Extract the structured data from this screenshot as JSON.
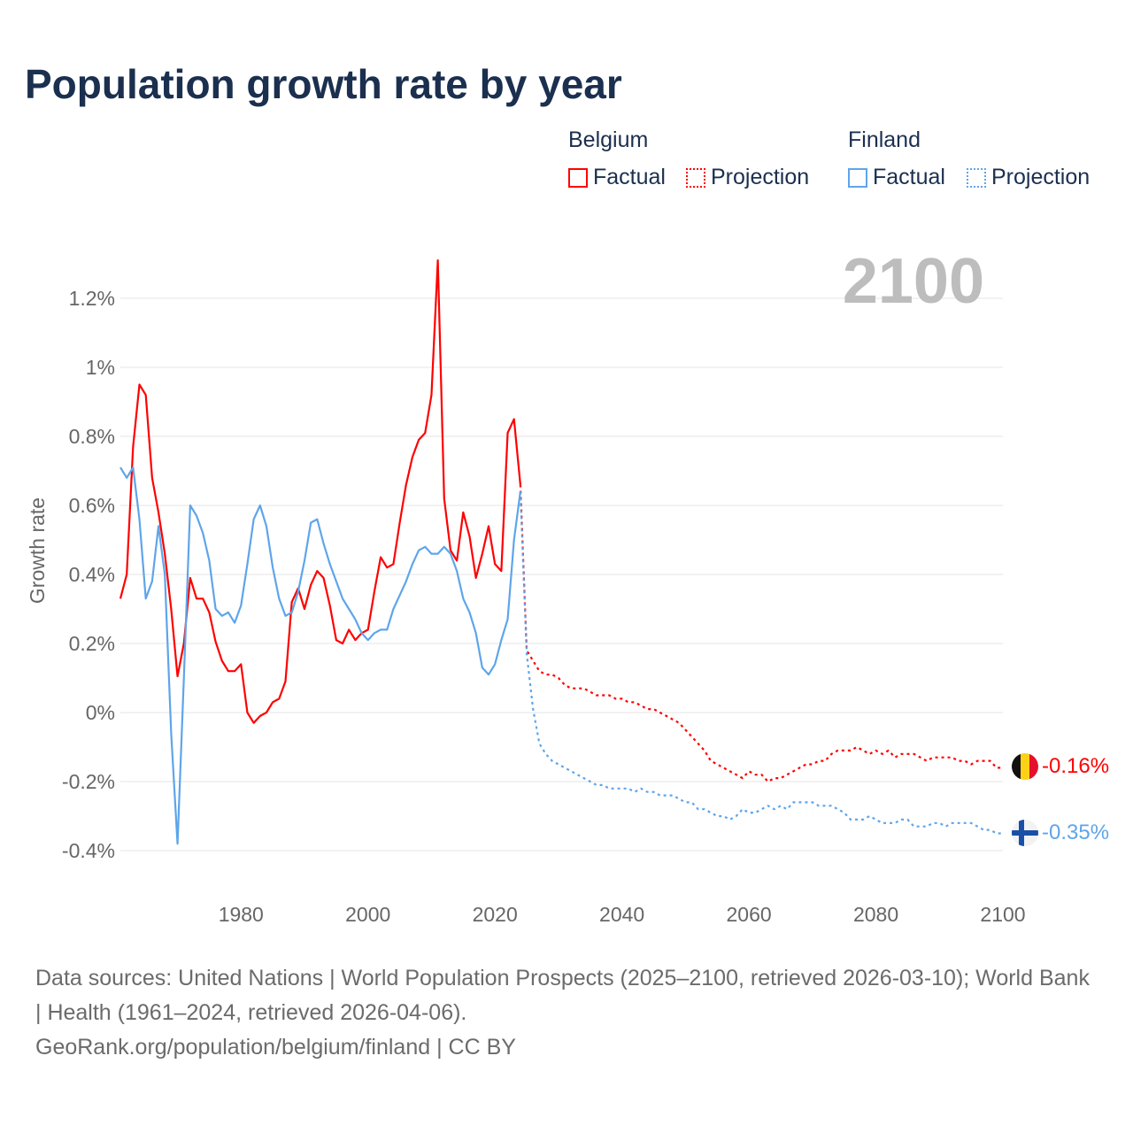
{
  "title": "Population growth rate by year",
  "legend": {
    "groups": [
      {
        "name": "Belgium",
        "factual": "Factual",
        "projection": "Projection",
        "color": "#ff0000"
      },
      {
        "name": "Finland",
        "factual": "Factual",
        "projection": "Projection",
        "color": "#5ea5ea"
      }
    ]
  },
  "year_badge": "2100",
  "end_labels": {
    "belgium": "-0.16%",
    "finland": "-0.35%"
  },
  "footer": {
    "line1": "Data sources: United Nations | World Population Prospects (2025–2100, retrieved 2026-03-10); World Bank | Health (1961–2024, retrieved 2026-04-06).",
    "line2": "GeoRank.org/population/belgium/finland | CC BY"
  },
  "chart_data": {
    "type": "line",
    "title": "Population growth rate by year",
    "xlabel": "",
    "ylabel": "Growth rate",
    "xlim": [
      1961,
      2100
    ],
    "ylim": [
      -0.45,
      1.35
    ],
    "x_ticks": [
      1980,
      2000,
      2020,
      2040,
      2060,
      2080,
      2100
    ],
    "x_tick_labels": [
      "1980",
      "2000",
      "2020",
      "2040",
      "2060",
      "2080",
      "2100"
    ],
    "y_ticks": [
      -0.4,
      -0.2,
      0,
      0.2,
      0.4,
      0.6,
      0.8,
      1,
      1.2
    ],
    "y_tick_labels": [
      "-0.4%",
      "-0.2%",
      "0%",
      "0.2%",
      "0.4%",
      "0.6%",
      "0.8%",
      "1%",
      "1.2%"
    ],
    "grid": true,
    "legend_position": "top-right",
    "factual_start_year": 1961,
    "projection_start_year": 2025,
    "series": [
      {
        "name": "Belgium Factual",
        "color": "#ff0000",
        "style": "solid",
        "values": [
          0.33,
          0.4,
          0.77,
          0.95,
          0.92,
          0.68,
          0.58,
          0.46,
          0.3,
          0.105,
          0.2,
          0.39,
          0.33,
          0.33,
          0.29,
          0.205,
          0.15,
          0.12,
          0.12,
          0.14,
          0.0,
          -0.03,
          -0.01,
          0.0,
          0.03,
          0.04,
          0.09,
          0.32,
          0.36,
          0.3,
          0.37,
          0.41,
          0.39,
          0.31,
          0.21,
          0.2,
          0.24,
          0.21,
          0.23,
          0.24,
          0.35,
          0.45,
          0.42,
          0.43,
          0.55,
          0.66,
          0.74,
          0.79,
          0.81,
          0.92,
          1.31,
          0.62,
          0.47,
          0.44,
          0.58,
          0.51,
          0.39,
          0.46,
          0.54,
          0.43,
          0.41,
          0.81,
          0.85,
          0.66
        ]
      },
      {
        "name": "Belgium Projection",
        "color": "#ff0000",
        "style": "dotted",
        "values": [
          0.18,
          0.15,
          0.12,
          0.11,
          0.11,
          0.1,
          0.08,
          0.07,
          0.07,
          0.07,
          0.06,
          0.05,
          0.05,
          0.05,
          0.04,
          0.04,
          0.03,
          0.03,
          0.02,
          0.01,
          0.01,
          0.0,
          -0.01,
          -0.02,
          -0.03,
          -0.05,
          -0.07,
          -0.09,
          -0.11,
          -0.14,
          -0.15,
          -0.16,
          -0.17,
          -0.18,
          -0.19,
          -0.17,
          -0.18,
          -0.18,
          -0.2,
          -0.19,
          -0.19,
          -0.18,
          -0.17,
          -0.16,
          -0.15,
          -0.15,
          -0.14,
          -0.14,
          -0.12,
          -0.11,
          -0.11,
          -0.11,
          -0.1,
          -0.11,
          -0.12,
          -0.11,
          -0.12,
          -0.11,
          -0.13,
          -0.12,
          -0.12,
          -0.12,
          -0.13,
          -0.14,
          -0.13,
          -0.13,
          -0.13,
          -0.13,
          -0.14,
          -0.14,
          -0.15,
          -0.14,
          -0.14,
          -0.14,
          -0.16,
          -0.16
        ]
      },
      {
        "name": "Finland Factual",
        "color": "#5ea5ea",
        "style": "solid",
        "values": [
          0.71,
          0.68,
          0.71,
          0.56,
          0.33,
          0.38,
          0.54,
          0.4,
          -0.06,
          -0.38,
          0.1,
          0.6,
          0.57,
          0.52,
          0.44,
          0.3,
          0.28,
          0.29,
          0.26,
          0.31,
          0.43,
          0.56,
          0.6,
          0.54,
          0.42,
          0.33,
          0.28,
          0.29,
          0.35,
          0.44,
          0.55,
          0.56,
          0.49,
          0.43,
          0.38,
          0.33,
          0.3,
          0.27,
          0.23,
          0.21,
          0.23,
          0.24,
          0.24,
          0.3,
          0.34,
          0.38,
          0.43,
          0.47,
          0.48,
          0.46,
          0.46,
          0.48,
          0.46,
          0.41,
          0.33,
          0.29,
          0.23,
          0.13,
          0.11,
          0.14,
          0.21,
          0.27,
          0.5,
          0.64
        ]
      },
      {
        "name": "Finland Projection",
        "color": "#5ea5ea",
        "style": "dotted",
        "values": [
          0.17,
          0.01,
          -0.09,
          -0.12,
          -0.14,
          -0.15,
          -0.16,
          -0.17,
          -0.18,
          -0.19,
          -0.2,
          -0.21,
          -0.21,
          -0.22,
          -0.22,
          -0.22,
          -0.22,
          -0.23,
          -0.22,
          -0.23,
          -0.23,
          -0.24,
          -0.24,
          -0.24,
          -0.25,
          -0.26,
          -0.26,
          -0.28,
          -0.28,
          -0.29,
          -0.3,
          -0.3,
          -0.31,
          -0.3,
          -0.28,
          -0.29,
          -0.29,
          -0.28,
          -0.27,
          -0.28,
          -0.27,
          -0.28,
          -0.26,
          -0.26,
          -0.26,
          -0.26,
          -0.27,
          -0.27,
          -0.27,
          -0.28,
          -0.29,
          -0.31,
          -0.31,
          -0.31,
          -0.3,
          -0.31,
          -0.32,
          -0.32,
          -0.32,
          -0.31,
          -0.31,
          -0.33,
          -0.33,
          -0.33,
          -0.32,
          -0.32,
          -0.33,
          -0.32,
          -0.32,
          -0.32,
          -0.32,
          -0.33,
          -0.34,
          -0.34,
          -0.35,
          -0.35
        ]
      }
    ]
  }
}
